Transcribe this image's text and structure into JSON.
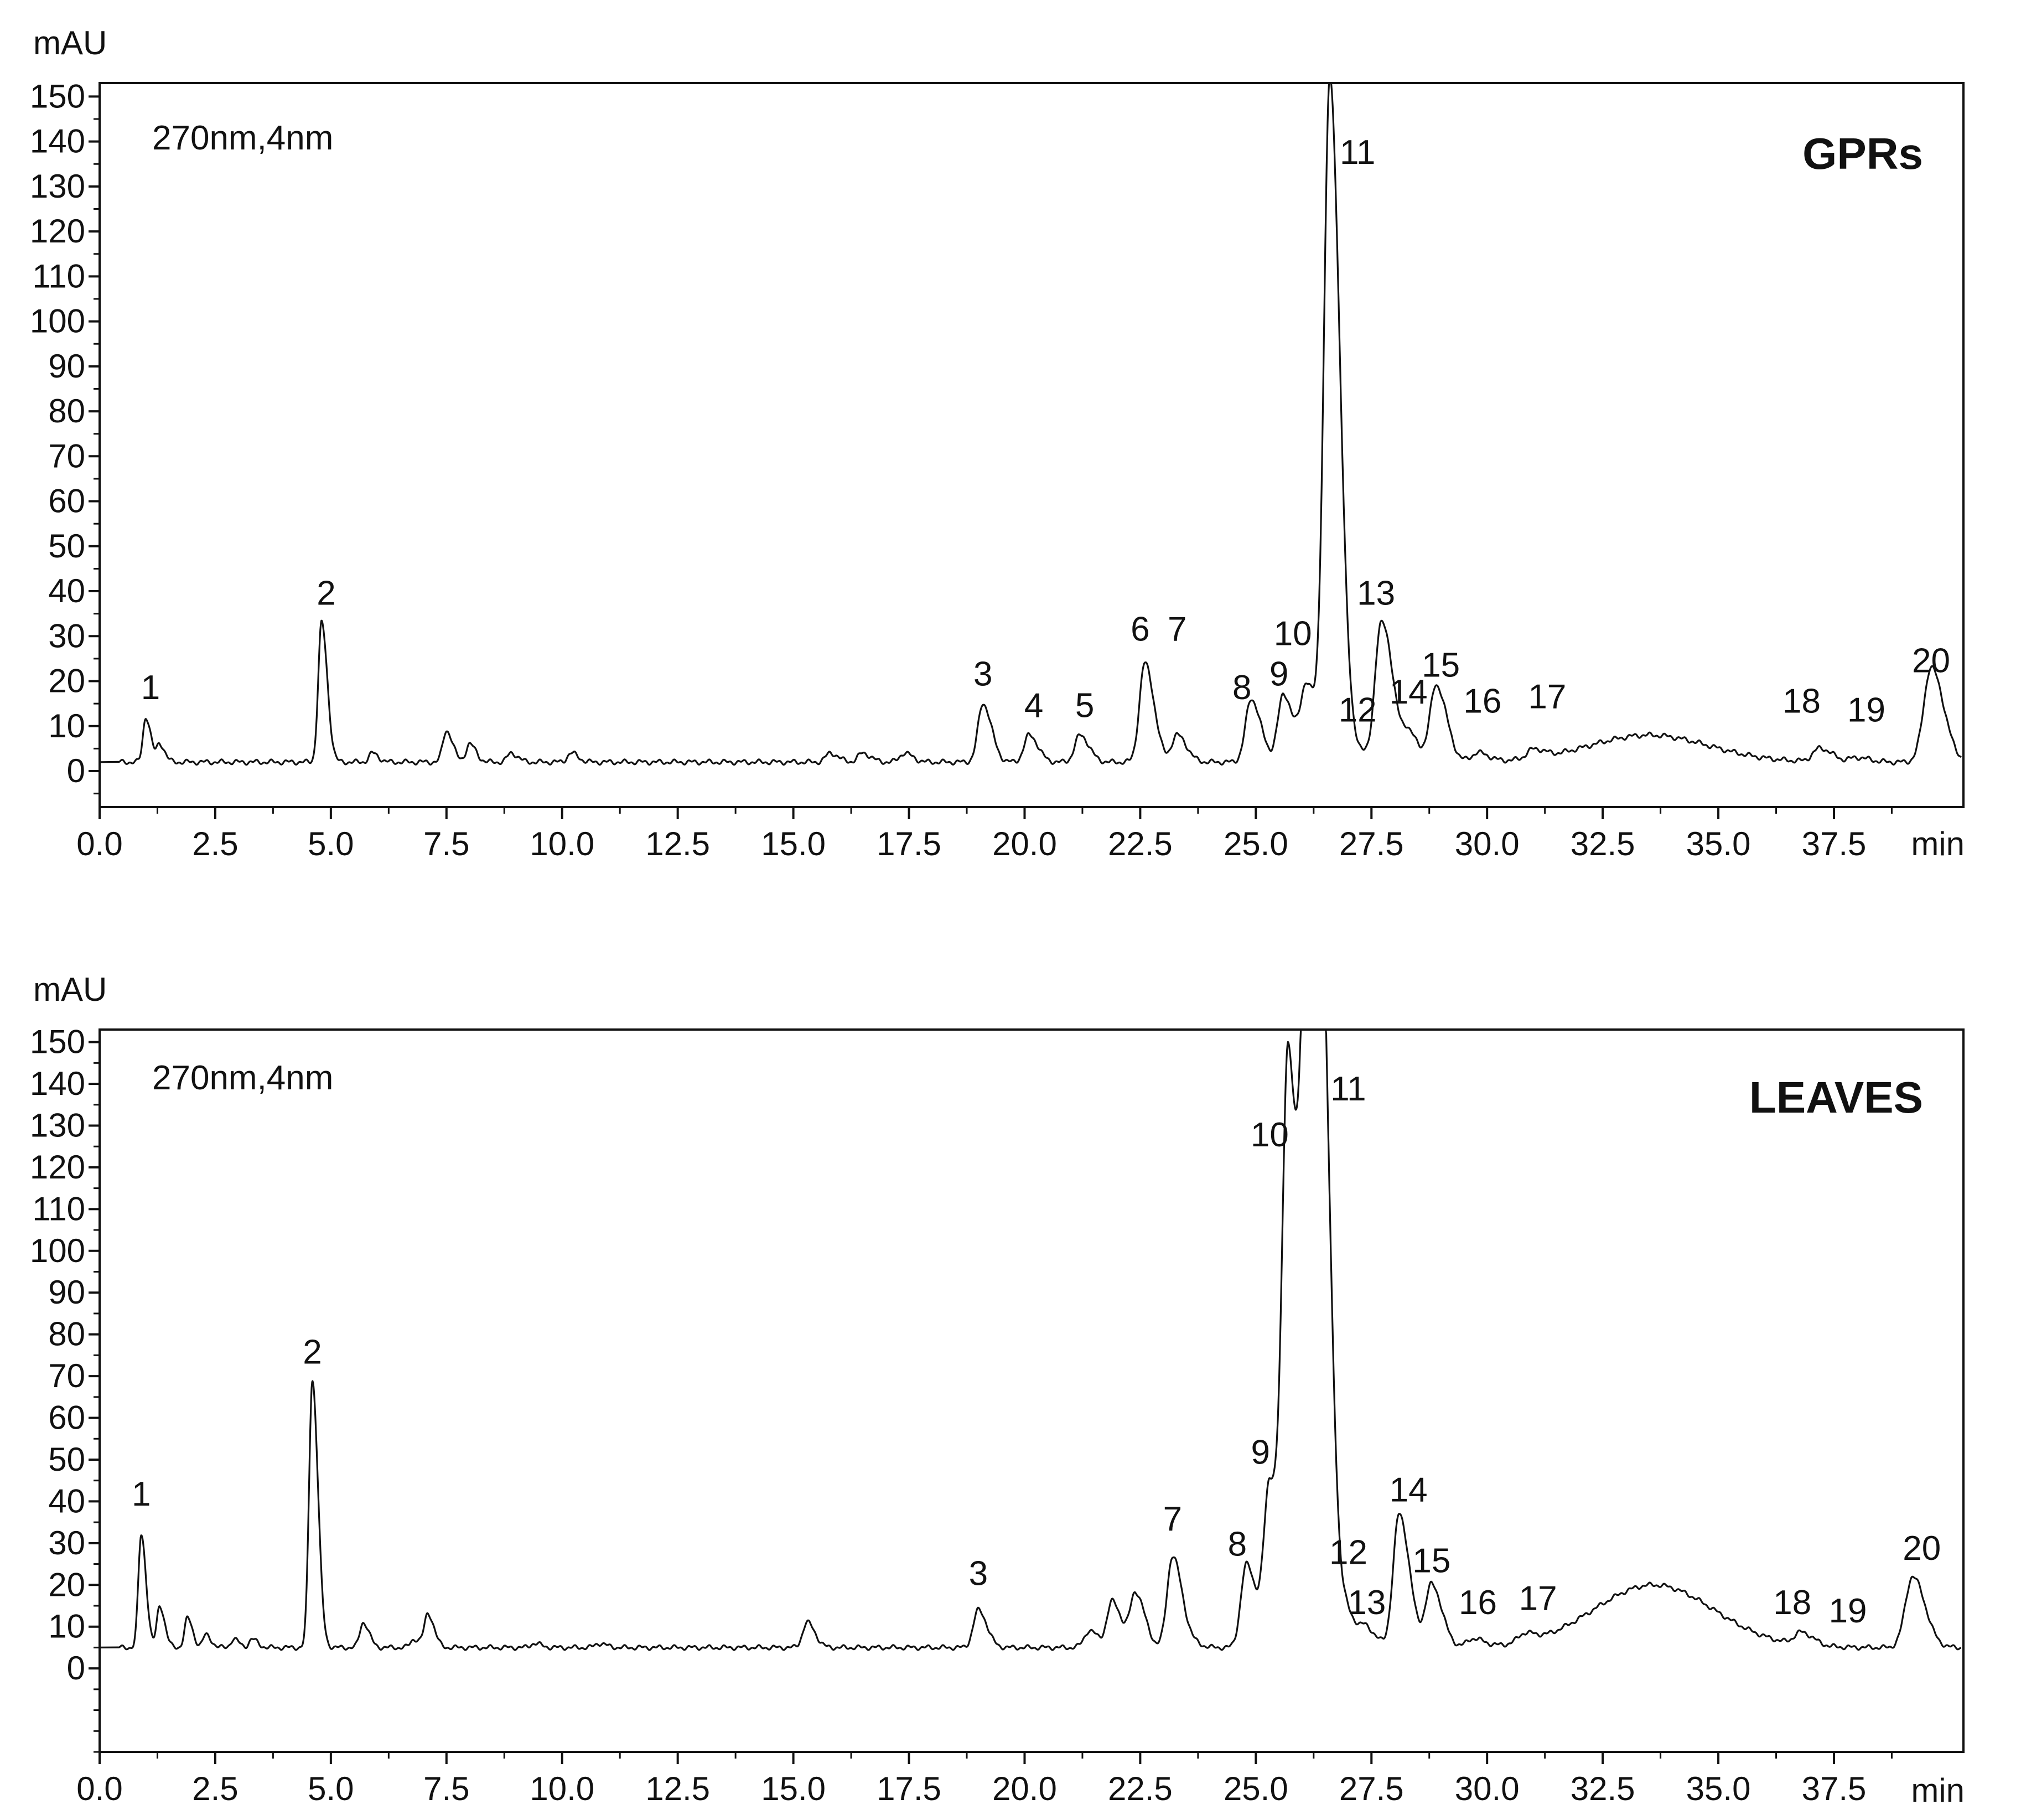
{
  "colors": {
    "trace": "#111111",
    "frame": "#111111",
    "background": "#ffffff"
  },
  "chart_data": [
    {
      "type": "line",
      "title": "GPRs",
      "annotation": "270nm,4nm",
      "ylabel": "mAU",
      "xlabel": "min",
      "xlim": [
        0,
        40.3
      ],
      "ylim": [
        -8,
        153
      ],
      "baseline": 2,
      "yticks": [
        0,
        10,
        20,
        30,
        40,
        50,
        60,
        70,
        80,
        90,
        100,
        110,
        120,
        130,
        140,
        150
      ],
      "xticks": [
        0.0,
        2.5,
        5.0,
        7.5,
        10.0,
        12.5,
        15.0,
        17.5,
        20.0,
        22.5,
        25.0,
        27.5,
        30.0,
        32.5,
        35.0,
        37.5
      ],
      "xtick_labels": [
        "0.0",
        "2.5",
        "5.0",
        "7.5",
        "10.0",
        "12.5",
        "15.0",
        "17.5",
        "20.0",
        "22.5",
        "25.0",
        "27.5",
        "30.0",
        "32.5",
        "35.0",
        "37.5"
      ],
      "peaks": [
        {
          "label": "1",
          "x": 1.0,
          "y": 12,
          "lx": 1.1,
          "ly": 16
        },
        {
          "label": "",
          "x": 1.3,
          "y": 6
        },
        {
          "label": "2",
          "x": 4.8,
          "y": 33,
          "lx": 4.9,
          "ly": 37
        },
        {
          "label": "",
          "x": 5.9,
          "y": 4
        },
        {
          "label": "",
          "x": 7.5,
          "y": 9
        },
        {
          "label": "",
          "x": 8.0,
          "y": 6
        },
        {
          "label": "",
          "x": 8.9,
          "y": 4
        },
        {
          "label": "",
          "x": 10.2,
          "y": 4
        },
        {
          "label": "",
          "x": 15.8,
          "y": 4
        },
        {
          "label": "",
          "x": 16.5,
          "y": 4
        },
        {
          "label": "",
          "x": 17.4,
          "y": 4
        },
        {
          "label": "3",
          "x": 19.1,
          "y": 15,
          "lx": 19.1,
          "ly": 19
        },
        {
          "label": "4",
          "x": 20.1,
          "y": 8,
          "lx": 20.2,
          "ly": 12
        },
        {
          "label": "5",
          "x": 21.2,
          "y": 8,
          "lx": 21.3,
          "ly": 12
        },
        {
          "label": "6",
          "x": 22.6,
          "y": 24,
          "lx": 22.5,
          "ly": 29
        },
        {
          "label": "7",
          "x": 23.3,
          "y": 8,
          "lx": 23.3,
          "ly": 29
        },
        {
          "label": "8",
          "x": 24.9,
          "y": 16,
          "lx": 24.7,
          "ly": 16
        },
        {
          "label": "9",
          "x": 25.6,
          "y": 17,
          "lx": 25.5,
          "ly": 19
        },
        {
          "label": "10",
          "x": 26.1,
          "y": 19,
          "lx": 25.8,
          "ly": 28
        },
        {
          "label": "11",
          "x": 26.6,
          "y": 153,
          "lx": 27.2,
          "ly": 135
        },
        {
          "label": "12",
          "x": 27.2,
          "y": 4,
          "lx": 27.2,
          "ly": 11
        },
        {
          "label": "13",
          "x": 27.7,
          "y": 31,
          "lx": 27.6,
          "ly": 37
        },
        {
          "label": "",
          "x": 27.9,
          "y": 7
        },
        {
          "label": "14",
          "x": 28.3,
          "y": 8,
          "lx": 28.3,
          "ly": 15
        },
        {
          "label": "15",
          "x": 28.9,
          "y": 19,
          "lx": 29.0,
          "ly": 21
        },
        {
          "label": "16",
          "x": 29.8,
          "y": 4,
          "lx": 29.9,
          "ly": 13
        },
        {
          "label": "17",
          "x": 31.0,
          "y": 4,
          "lx": 31.3,
          "ly": 14
        },
        {
          "label": "18",
          "x": 37.2,
          "y": 5,
          "lx": 36.8,
          "ly": 13
        },
        {
          "label": "19",
          "x": 38.0,
          "y": 3,
          "lx": 38.2,
          "ly": 11
        },
        {
          "label": "20",
          "x": 39.6,
          "y": 23,
          "lx": 39.6,
          "ly": 22
        }
      ],
      "humps": [
        {
          "x": 33.5,
          "y": 8
        }
      ]
    },
    {
      "type": "line",
      "title": "LEAVES",
      "annotation": "270nm,4nm",
      "ylabel": "mAU",
      "xlabel": "min",
      "xlim": [
        0,
        40.3
      ],
      "ylim": [
        -20,
        153
      ],
      "baseline": 5,
      "yticks": [
        0,
        10,
        20,
        30,
        40,
        50,
        60,
        70,
        80,
        90,
        100,
        110,
        120,
        130,
        140,
        150
      ],
      "xticks": [
        0.0,
        2.5,
        5.0,
        7.5,
        10.0,
        12.5,
        15.0,
        17.5,
        20.0,
        22.5,
        25.0,
        27.5,
        30.0,
        32.5,
        35.0,
        37.5
      ],
      "xtick_labels": [
        "0.0",
        "2.5",
        "5.0",
        "7.5",
        "10.0",
        "12.5",
        "15.0",
        "17.5",
        "20.0",
        "22.5",
        "25.0",
        "27.5",
        "30.0",
        "32.5",
        "35.0",
        "37.5"
      ],
      "peaks": [
        {
          "label": "1",
          "x": 0.9,
          "y": 32,
          "lx": 0.9,
          "ly": 39
        },
        {
          "label": "",
          "x": 1.3,
          "y": 15
        },
        {
          "label": "",
          "x": 1.9,
          "y": 12
        },
        {
          "label": "",
          "x": 2.3,
          "y": 8
        },
        {
          "label": "",
          "x": 2.9,
          "y": 7
        },
        {
          "label": "",
          "x": 3.3,
          "y": 7
        },
        {
          "label": "2",
          "x": 4.6,
          "y": 69,
          "lx": 4.6,
          "ly": 73
        },
        {
          "label": "",
          "x": 5.7,
          "y": 11
        },
        {
          "label": "",
          "x": 7.1,
          "y": 13
        },
        {
          "label": "",
          "x": 6.8,
          "y": 7
        },
        {
          "label": "",
          "x": 9.4,
          "y": 6
        },
        {
          "label": "",
          "x": 10.8,
          "y": 6
        },
        {
          "label": "",
          "x": 15.3,
          "y": 11
        },
        {
          "label": "3",
          "x": 19.0,
          "y": 14,
          "lx": 19.0,
          "ly": 20
        },
        {
          "label": "",
          "x": 21.4,
          "y": 9
        },
        {
          "label": "",
          "x": 21.9,
          "y": 16
        },
        {
          "label": "",
          "x": 22.4,
          "y": 18
        },
        {
          "label": "7",
          "x": 23.2,
          "y": 27,
          "lx": 23.2,
          "ly": 33
        },
        {
          "label": "",
          "x": 23.6,
          "y": 6
        },
        {
          "label": "8",
          "x": 24.8,
          "y": 25,
          "lx": 24.6,
          "ly": 27
        },
        {
          "label": "9",
          "x": 25.3,
          "y": 44,
          "lx": 25.1,
          "ly": 49
        },
        {
          "label": "10",
          "x": 25.7,
          "y": 143,
          "lx": 25.3,
          "ly": 125
        },
        {
          "label": "",
          "x": 26.1,
          "y": 153
        },
        {
          "label": "11",
          "x": 26.4,
          "y": 153,
          "lx": 27.0,
          "ly": 136
        },
        {
          "label": "12",
          "x": 27.0,
          "y": 12,
          "lx": 27.0,
          "ly": 25
        },
        {
          "label": "13",
          "x": 27.4,
          "y": 9,
          "lx": 27.4,
          "ly": 13
        },
        {
          "label": "14",
          "x": 28.1,
          "y": 37,
          "lx": 28.3,
          "ly": 40
        },
        {
          "label": "15",
          "x": 28.8,
          "y": 20,
          "lx": 28.8,
          "ly": 23
        },
        {
          "label": "16",
          "x": 29.7,
          "y": 7,
          "lx": 29.8,
          "ly": 13
        },
        {
          "label": "17",
          "x": 30.8,
          "y": 7,
          "lx": 31.1,
          "ly": 14
        },
        {
          "label": "18",
          "x": 36.8,
          "y": 8,
          "lx": 36.6,
          "ly": 13
        },
        {
          "label": "19",
          "x": 37.6,
          "y": 5,
          "lx": 37.8,
          "ly": 11
        },
        {
          "label": "20",
          "x": 39.2,
          "y": 22,
          "lx": 39.4,
          "ly": 26
        }
      ],
      "humps": [
        {
          "x": 33.6,
          "y": 20
        }
      ]
    }
  ]
}
